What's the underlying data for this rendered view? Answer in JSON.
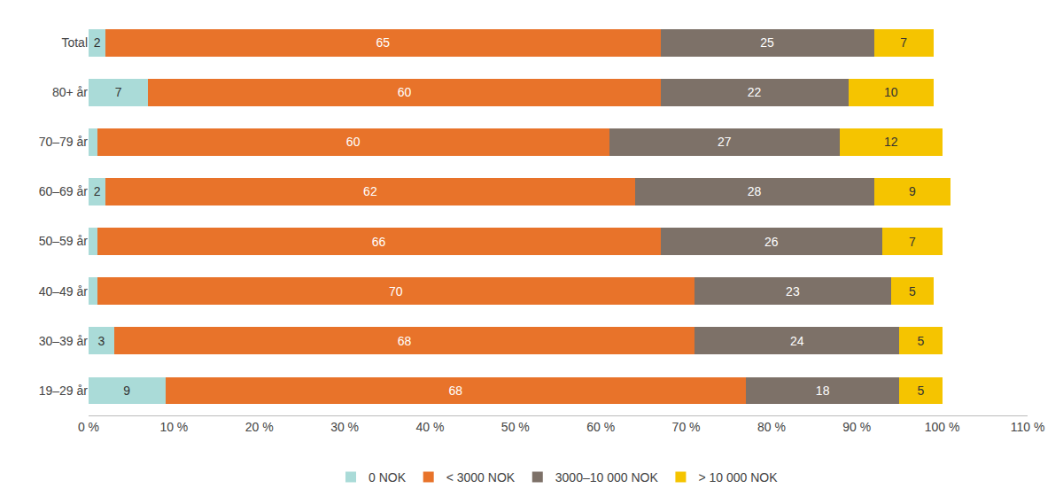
{
  "chart_data": {
    "type": "bar",
    "orientation": "horizontal",
    "stacked": true,
    "categories": [
      "19–29 år",
      "30–39 år",
      "40–49 år",
      "50–59 år",
      "60–69 år",
      "70–79 år",
      "80+ år",
      "Total"
    ],
    "series": [
      {
        "name": "0 NOK",
        "color": "#aadbd8",
        "values": [
          9,
          3,
          1,
          1,
          2,
          1,
          7,
          2
        ],
        "value_labels": [
          "9",
          "3",
          null,
          null,
          "2",
          null,
          "7",
          "2"
        ]
      },
      {
        "name": "< 3000 NOK",
        "color": "#e8732a",
        "values": [
          68,
          68,
          70,
          66,
          62,
          60,
          60,
          65
        ]
      },
      {
        "name": "3000–10 000 NOK",
        "color": "#7d7168",
        "values": [
          18,
          24,
          23,
          26,
          28,
          27,
          22,
          25
        ]
      },
      {
        "name": "> 10 000 NOK",
        "color": "#f5c400",
        "values": [
          5,
          5,
          5,
          7,
          9,
          12,
          10,
          7
        ]
      }
    ],
    "xlim": [
      0,
      110
    ],
    "xticks": [
      {
        "value": 0,
        "label": "0 %"
      },
      {
        "value": 10,
        "label": "10 %"
      },
      {
        "value": 20,
        "label": "20 %"
      },
      {
        "value": 30,
        "label": "30 %"
      },
      {
        "value": 40,
        "label": "40 %"
      },
      {
        "value": 50,
        "label": "50 %"
      },
      {
        "value": 60,
        "label": "60 %"
      },
      {
        "value": 70,
        "label": "70 %"
      },
      {
        "value": 80,
        "label": "80 %"
      },
      {
        "value": 90,
        "label": "90 %"
      },
      {
        "value": 100,
        "label": "100 %"
      },
      {
        "value": 110,
        "label": "110 %"
      }
    ],
    "data_labels": true,
    "grid": false,
    "legend": "bottom"
  }
}
